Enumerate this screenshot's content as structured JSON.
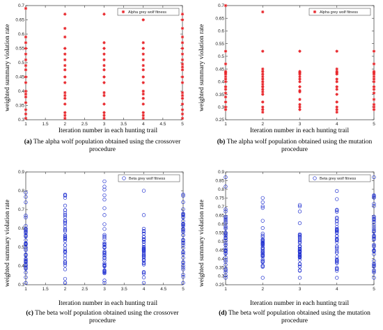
{
  "chart_data": [
    {
      "id": "a",
      "type": "scatter",
      "marker": "star",
      "color": "#e8262b",
      "ylabel": "weighted summary violation rate",
      "xlabel": "Iteration number in each hunting trail",
      "caption_prefix": "(a)",
      "caption_text": "The alpha wolf population obtained using the crossover procedure",
      "legend": "Alpha grey wolf fitness",
      "legend_position": "top-right",
      "xlim": [
        1,
        5
      ],
      "ylim": [
        0.3,
        0.7
      ],
      "xticks": [
        "1",
        "1.5",
        "2",
        "2.5",
        "3",
        "3.5",
        "4",
        "4.5",
        "5"
      ],
      "yticks": [
        "0.3",
        "0.35",
        "0.4",
        "0.45",
        "0.5",
        "0.55",
        "0.6",
        "0.65",
        "0.7"
      ],
      "series": [
        {
          "x": 1,
          "y": [
            0.305,
            0.32,
            0.335,
            0.36,
            0.38,
            0.39,
            0.4,
            0.43,
            0.45,
            0.475,
            0.49,
            0.51,
            0.53,
            0.55,
            0.57,
            0.59,
            0.69
          ]
        },
        {
          "x": 2,
          "y": [
            0.305,
            0.315,
            0.325,
            0.355,
            0.375,
            0.385,
            0.395,
            0.43,
            0.45,
            0.475,
            0.49,
            0.51,
            0.53,
            0.55,
            0.59,
            0.62,
            0.67
          ]
        },
        {
          "x": 3,
          "y": [
            0.305,
            0.315,
            0.325,
            0.355,
            0.385,
            0.395,
            0.43,
            0.45,
            0.475,
            0.49,
            0.51,
            0.53,
            0.55,
            0.57,
            0.67
          ]
        },
        {
          "x": 4,
          "y": [
            0.305,
            0.315,
            0.325,
            0.355,
            0.375,
            0.39,
            0.4,
            0.43,
            0.45,
            0.475,
            0.49,
            0.51,
            0.53,
            0.55,
            0.57,
            0.65
          ]
        },
        {
          "x": 5,
          "y": [
            0.305,
            0.32,
            0.335,
            0.355,
            0.375,
            0.385,
            0.395,
            0.43,
            0.45,
            0.475,
            0.485,
            0.495,
            0.51,
            0.53,
            0.55,
            0.57,
            0.59,
            0.62,
            0.65,
            0.67
          ]
        }
      ]
    },
    {
      "id": "b",
      "type": "scatter",
      "marker": "star",
      "color": "#e8262b",
      "ylabel": "weighted summary violation rate",
      "xlabel": "Iteration number in each hunting trail",
      "caption_prefix": "(b)",
      "caption_text": "The alpha wolf population obtained using the mutation procedure",
      "legend": "Alpha grey wolf fitness",
      "legend_position": "top-right",
      "xlim": [
        1,
        5
      ],
      "ylim": [
        0.25,
        0.7
      ],
      "xticks": [
        "1",
        "2",
        "3",
        "4",
        "5"
      ],
      "yticks": [
        "0.25",
        "0.3",
        "0.35",
        "0.4",
        "0.45",
        "0.5",
        "0.55",
        "0.6",
        "0.65",
        "0.7"
      ],
      "series": [
        {
          "x": 1,
          "y": [
            0.29,
            0.3,
            0.32,
            0.34,
            0.355,
            0.37,
            0.38,
            0.4,
            0.41,
            0.42,
            0.43,
            0.435,
            0.44,
            0.47,
            0.52,
            0.7
          ]
        },
        {
          "x": 2,
          "y": [
            0.28,
            0.29,
            0.3,
            0.32,
            0.35,
            0.36,
            0.37,
            0.38,
            0.39,
            0.4,
            0.41,
            0.42,
            0.43,
            0.44,
            0.45,
            0.52,
            0.675
          ]
        },
        {
          "x": 3,
          "y": [
            0.29,
            0.3,
            0.31,
            0.33,
            0.36,
            0.365,
            0.38,
            0.4,
            0.41,
            0.42,
            0.43,
            0.435,
            0.44,
            0.52
          ]
        },
        {
          "x": 4,
          "y": [
            0.28,
            0.29,
            0.3,
            0.32,
            0.35,
            0.37,
            0.38,
            0.4,
            0.41,
            0.43,
            0.435,
            0.44,
            0.45,
            0.52
          ]
        },
        {
          "x": 5,
          "y": [
            0.29,
            0.3,
            0.31,
            0.33,
            0.355,
            0.37,
            0.38,
            0.4,
            0.41,
            0.42,
            0.43,
            0.435,
            0.44,
            0.47,
            0.52
          ]
        }
      ]
    },
    {
      "id": "c",
      "type": "scatter",
      "marker": "circle",
      "color": "#1f2fd0",
      "ylabel": "weighted summary violation rate",
      "xlabel": "Iteration number in each hunting trail",
      "caption_prefix": "(c)",
      "caption_text": "The beta wolf population obtained using the crossover procedure",
      "legend": "Beta grey wolf fitness",
      "legend_position": "top-right",
      "xlim": [
        1,
        5
      ],
      "ylim": [
        0.3,
        0.9
      ],
      "xticks": [
        "1",
        "1.5",
        "2",
        "2.5",
        "3",
        "3.5",
        "4",
        "4.5",
        "5"
      ],
      "yticks": [
        "0.3",
        "0.4",
        "0.5",
        "0.6",
        "0.7",
        "0.8",
        "0.9"
      ],
      "series": [
        {
          "x": 1,
          "range": [
            0.31,
            0.79
          ],
          "dense": [
            0.38,
            0.62
          ]
        },
        {
          "x": 2,
          "range": [
            0.31,
            0.78
          ],
          "dense": [
            0.38,
            0.7
          ]
        },
        {
          "x": 3,
          "range": [
            0.31,
            0.85
          ],
          "dense": [
            0.36,
            0.56
          ]
        },
        {
          "x": 4,
          "range": [
            0.31,
            0.8
          ],
          "dense": [
            0.36,
            0.6
          ]
        },
        {
          "x": 5,
          "range": [
            0.31,
            0.78
          ],
          "dense": [
            0.38,
            0.68
          ]
        }
      ]
    },
    {
      "id": "d",
      "type": "scatter",
      "marker": "circle",
      "color": "#1f2fd0",
      "ylabel": "weighted summary violation rate",
      "xlabel": "Iteration number in each hunting trail",
      "caption_prefix": "(d)",
      "caption_text": "The beta wolf population obtained using the mutation procedure",
      "legend": "Beta grey wolf fitness",
      "legend_position": "top-right",
      "xlim": [
        1,
        5
      ],
      "ylim": [
        0.25,
        0.9
      ],
      "xticks": [
        "1",
        "2",
        "3",
        "4",
        "5"
      ],
      "yticks": [
        "0.25",
        "0.3",
        "0.35",
        "0.4",
        "0.45",
        "0.5",
        "0.55",
        "0.6",
        "0.65",
        "0.7",
        "0.75",
        "0.8",
        "0.85",
        "0.9"
      ],
      "series": [
        {
          "x": 1,
          "range": [
            0.29,
            0.87
          ],
          "dense": [
            0.33,
            0.65
          ]
        },
        {
          "x": 2,
          "range": [
            0.29,
            0.75
          ],
          "dense": [
            0.33,
            0.55
          ]
        },
        {
          "x": 3,
          "range": [
            0.29,
            0.71
          ],
          "dense": [
            0.33,
            0.55
          ]
        },
        {
          "x": 4,
          "range": [
            0.29,
            0.79
          ],
          "dense": [
            0.33,
            0.62
          ]
        },
        {
          "x": 5,
          "range": [
            0.29,
            0.87
          ],
          "dense": [
            0.33,
            0.65
          ]
        }
      ]
    }
  ]
}
